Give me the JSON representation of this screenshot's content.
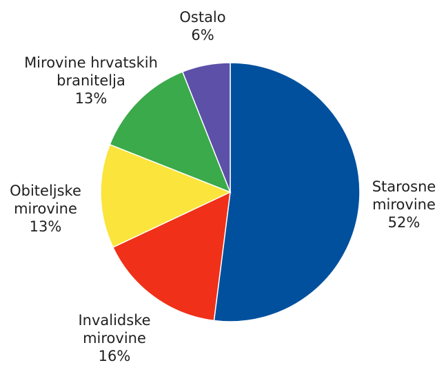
{
  "chart_data": {
    "type": "pie",
    "title": "",
    "slices": [
      {
        "label_lines": [
          "Starosne",
          "mirovine"
        ],
        "value_label": "52%",
        "value": 52,
        "color": "#00509e"
      },
      {
        "label_lines": [
          "Invalidske",
          "mirovine"
        ],
        "value_label": "16%",
        "value": 16,
        "color": "#f03018"
      },
      {
        "label_lines": [
          "Obiteljske",
          "mirovine"
        ],
        "value_label": "13%",
        "value": 13,
        "color": "#fbe43c"
      },
      {
        "label_lines": [
          "Mirovine hrvatskih",
          "branitelja"
        ],
        "value_label": "13%",
        "value": 13,
        "color": "#3aaa4a"
      },
      {
        "label_lines": [
          "Ostalo"
        ],
        "value_label": "6%",
        "value": 6,
        "color": "#5c50a8"
      }
    ],
    "start": "12 o'clock",
    "direction": "clockwise",
    "legend": "none"
  }
}
